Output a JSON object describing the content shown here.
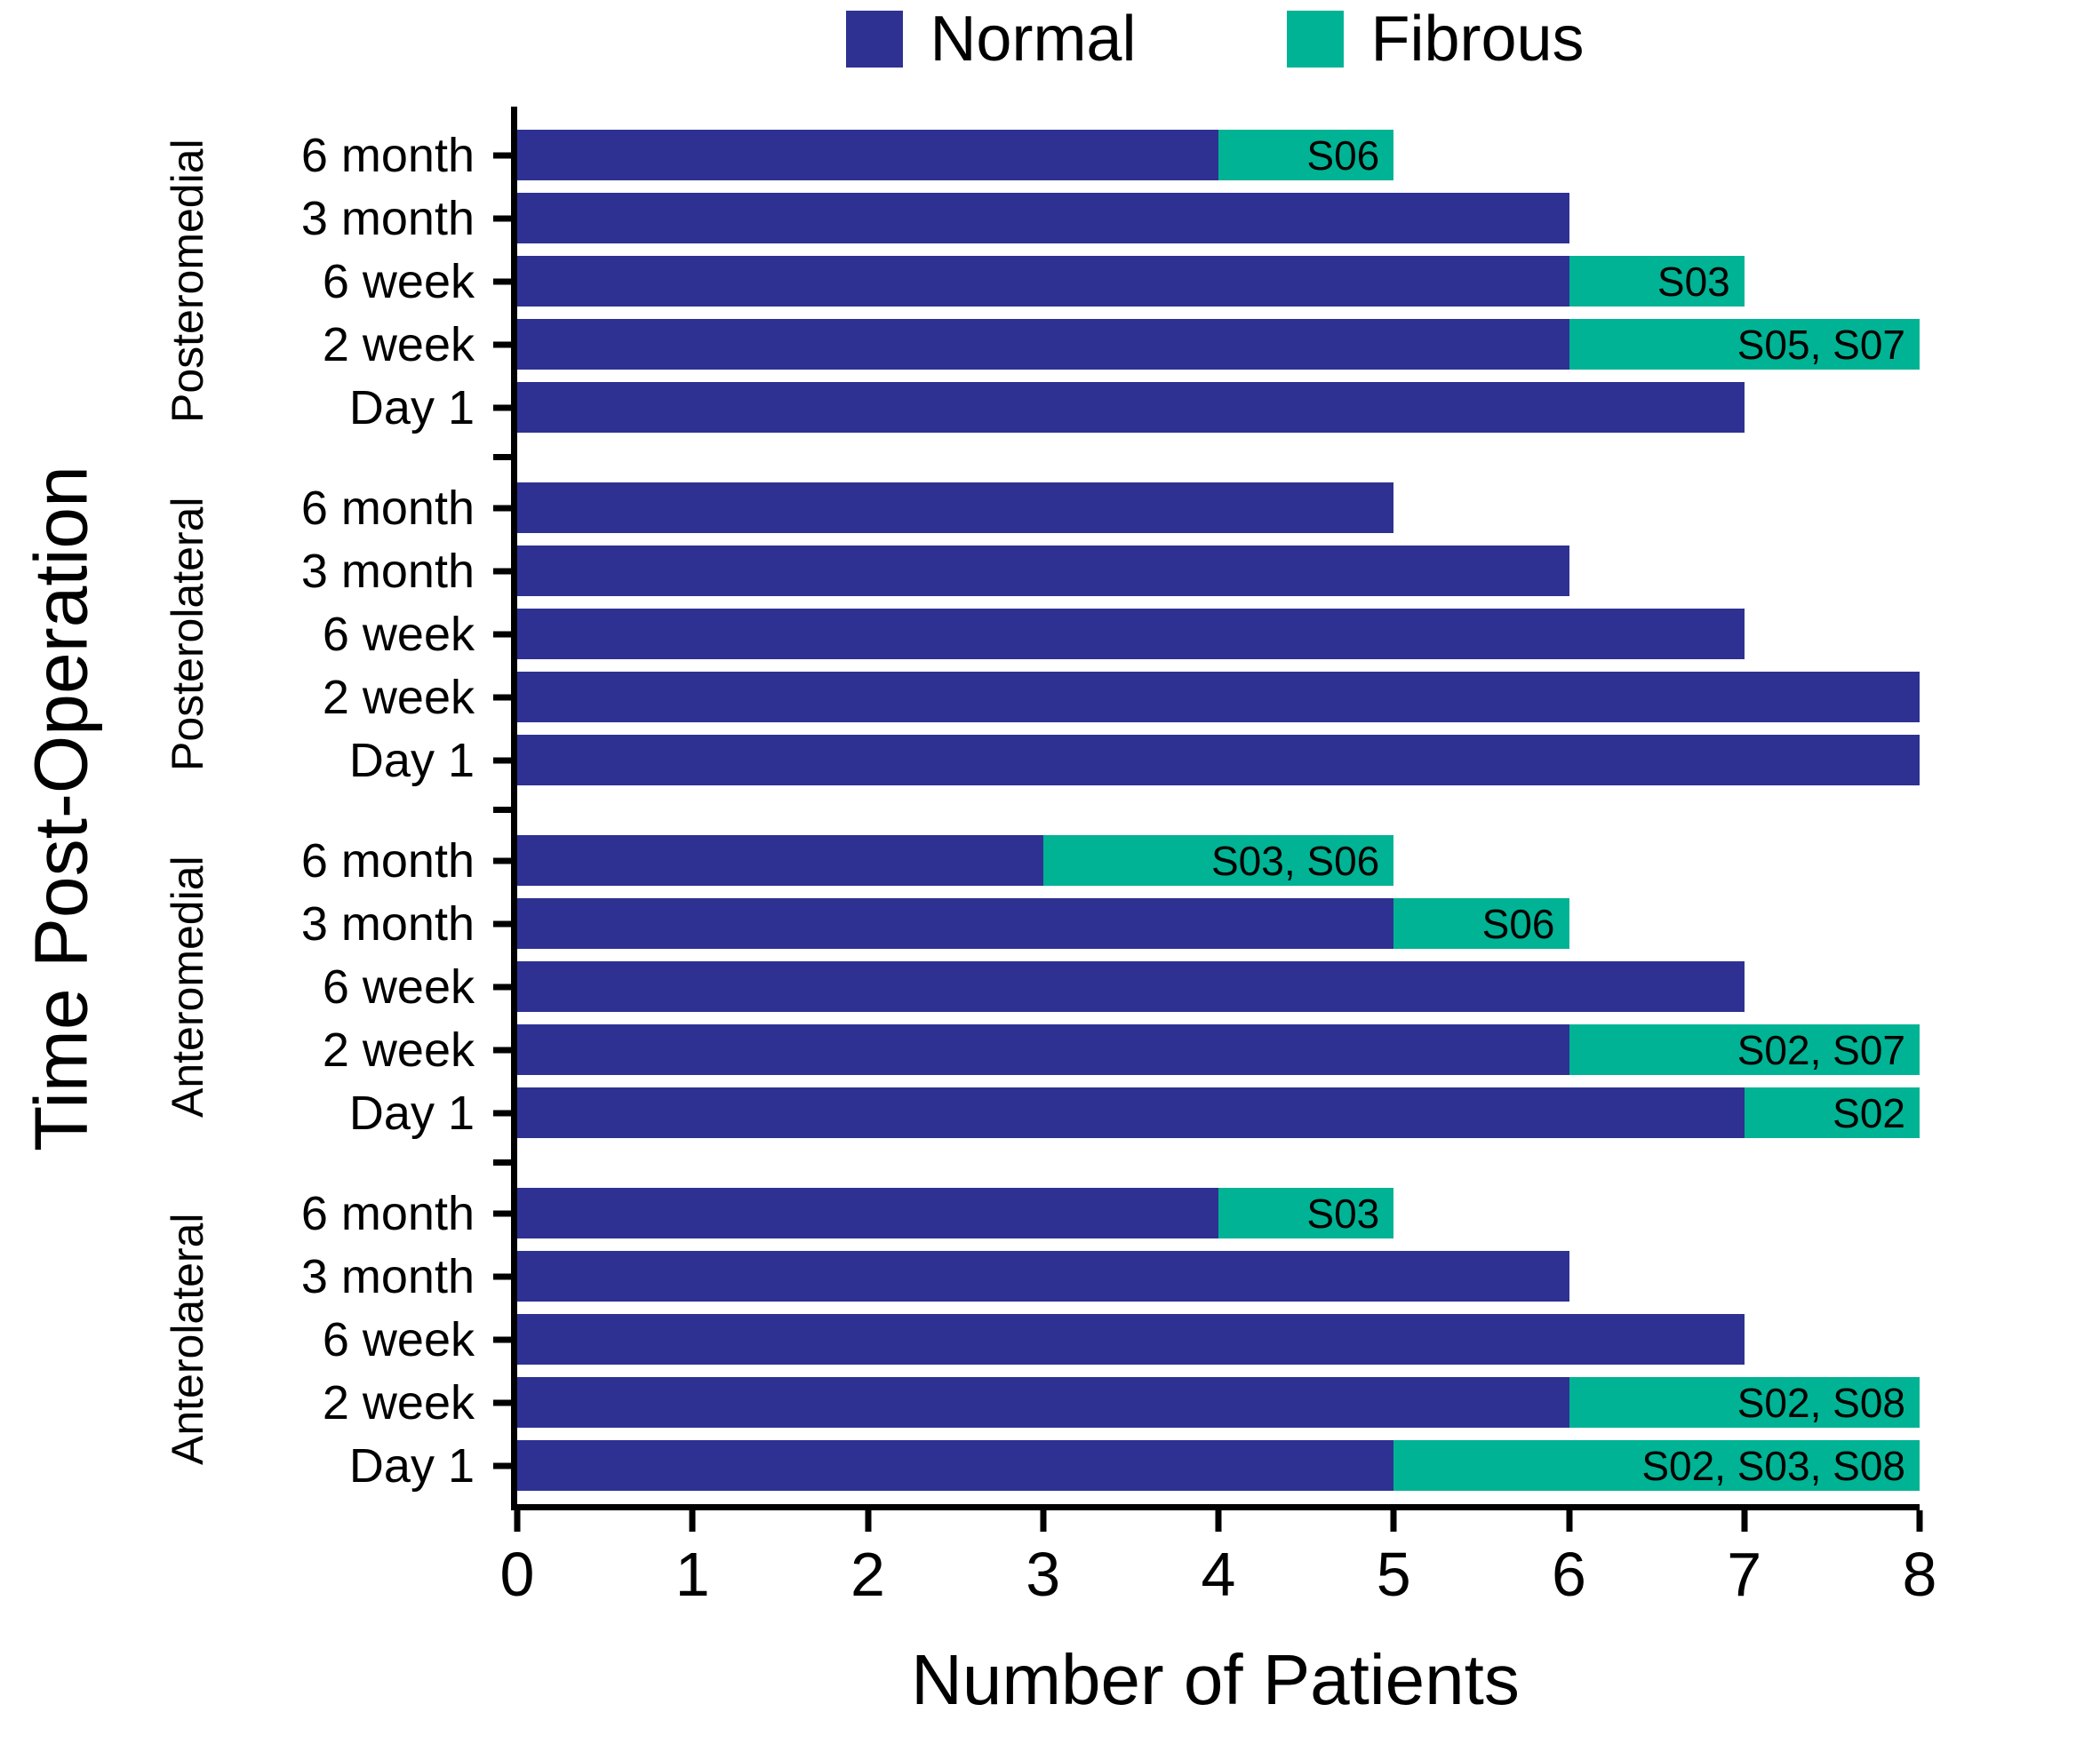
{
  "legend": {
    "items": [
      {
        "label": "Normal",
        "color": "#2e3192"
      },
      {
        "label": "Fibrous",
        "color": "#00b394"
      }
    ]
  },
  "chart_data": {
    "type": "bar",
    "orientation": "horizontal",
    "stacked": true,
    "title": "",
    "xlabel": "Number of Patients",
    "ylabel": "Time Post-Operation",
    "xlim": [
      0,
      8
    ],
    "x_ticks": [
      0,
      1,
      2,
      3,
      4,
      5,
      6,
      7,
      8
    ],
    "grid": false,
    "legend_position": "top",
    "series_names": [
      "Normal",
      "Fibrous"
    ],
    "colors": {
      "Normal": "#2e3192",
      "Fibrous": "#00b394"
    },
    "groups": [
      {
        "name": "Posteromedial",
        "rows": [
          {
            "label": "6 month",
            "Normal": 4,
            "Fibrous": 1,
            "annotation": "S06"
          },
          {
            "label": "3 month",
            "Normal": 6,
            "Fibrous": 0,
            "annotation": ""
          },
          {
            "label": "6 week",
            "Normal": 6,
            "Fibrous": 1,
            "annotation": "S03"
          },
          {
            "label": "2 week",
            "Normal": 6,
            "Fibrous": 2,
            "annotation": "S05, S07"
          },
          {
            "label": "Day 1",
            "Normal": 7,
            "Fibrous": 0,
            "annotation": ""
          }
        ]
      },
      {
        "name": "Posterolateral",
        "rows": [
          {
            "label": "6 month",
            "Normal": 5,
            "Fibrous": 0,
            "annotation": ""
          },
          {
            "label": "3 month",
            "Normal": 6,
            "Fibrous": 0,
            "annotation": ""
          },
          {
            "label": "6 week",
            "Normal": 7,
            "Fibrous": 0,
            "annotation": ""
          },
          {
            "label": "2 week",
            "Normal": 8,
            "Fibrous": 0,
            "annotation": ""
          },
          {
            "label": "Day 1",
            "Normal": 8,
            "Fibrous": 0,
            "annotation": ""
          }
        ]
      },
      {
        "name": "Anteromedial",
        "rows": [
          {
            "label": "6 month",
            "Normal": 3,
            "Fibrous": 2,
            "annotation": "S03, S06"
          },
          {
            "label": "3 month",
            "Normal": 5,
            "Fibrous": 1,
            "annotation": "S06"
          },
          {
            "label": "6 week",
            "Normal": 7,
            "Fibrous": 0,
            "annotation": ""
          },
          {
            "label": "2 week",
            "Normal": 6,
            "Fibrous": 2,
            "annotation": "S02, S07"
          },
          {
            "label": "Day 1",
            "Normal": 7,
            "Fibrous": 1,
            "annotation": "S02"
          }
        ]
      },
      {
        "name": "Anterolateral",
        "rows": [
          {
            "label": "6 month",
            "Normal": 4,
            "Fibrous": 1,
            "annotation": "S03"
          },
          {
            "label": "3 month",
            "Normal": 6,
            "Fibrous": 0,
            "annotation": ""
          },
          {
            "label": "6 week",
            "Normal": 7,
            "Fibrous": 0,
            "annotation": ""
          },
          {
            "label": "2 week",
            "Normal": 6,
            "Fibrous": 2,
            "annotation": "S02, S08"
          },
          {
            "label": "Day 1",
            "Normal": 5,
            "Fibrous": 3,
            "annotation": "S02, S03, S08"
          }
        ]
      }
    ]
  }
}
